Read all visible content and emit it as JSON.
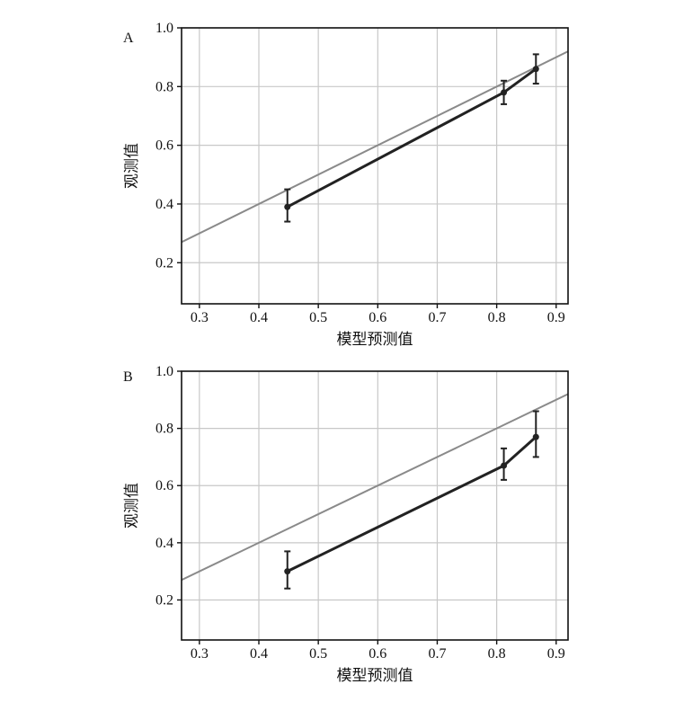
{
  "chart_data": [
    {
      "type": "line",
      "panel_label": "A",
      "xlabel": "模型预测值",
      "ylabel": "观测值",
      "xlim": [
        0.27,
        0.92
      ],
      "ylim": [
        0.06,
        1.0
      ],
      "x_ticks": [
        0.3,
        0.4,
        0.5,
        0.6,
        0.7,
        0.8,
        0.9
      ],
      "x_tick_labels": [
        "0.3",
        "0.4",
        "0.5",
        "0.6",
        "0.7",
        "0.8",
        "0.9"
      ],
      "y_ticks": [
        0.2,
        0.4,
        0.6,
        0.8,
        1.0
      ],
      "y_tick_labels": [
        "0.2",
        "0.4",
        "0.6",
        "0.8",
        "1.0"
      ],
      "grid": true,
      "reference_line": {
        "slope": 1,
        "intercept": 0,
        "color": "#8a8a8a"
      },
      "series": [
        {
          "color": "#222222",
          "x": [
            0.448,
            0.812,
            0.866
          ],
          "y": [
            0.39,
            0.78,
            0.86
          ],
          "err_low": [
            0.34,
            0.74,
            0.81
          ],
          "err_high": [
            0.45,
            0.82,
            0.91
          ]
        }
      ]
    },
    {
      "type": "line",
      "panel_label": "B",
      "xlabel": "模型预测值",
      "ylabel": "观测值",
      "xlim": [
        0.27,
        0.92
      ],
      "ylim": [
        0.06,
        1.0
      ],
      "x_ticks": [
        0.3,
        0.4,
        0.5,
        0.6,
        0.7,
        0.8,
        0.9
      ],
      "x_tick_labels": [
        "0.3",
        "0.4",
        "0.5",
        "0.6",
        "0.7",
        "0.8",
        "0.9"
      ],
      "y_ticks": [
        0.2,
        0.4,
        0.6,
        0.8,
        1.0
      ],
      "y_tick_labels": [
        "0.2",
        "0.4",
        "0.6",
        "0.8",
        "1.0"
      ],
      "grid": true,
      "reference_line": {
        "slope": 1,
        "intercept": 0,
        "color": "#8a8a8a"
      },
      "series": [
        {
          "color": "#222222",
          "x": [
            0.448,
            0.812,
            0.866
          ],
          "y": [
            0.3,
            0.67,
            0.77
          ],
          "err_low": [
            0.24,
            0.62,
            0.7
          ],
          "err_high": [
            0.37,
            0.73,
            0.86
          ]
        }
      ]
    }
  ]
}
